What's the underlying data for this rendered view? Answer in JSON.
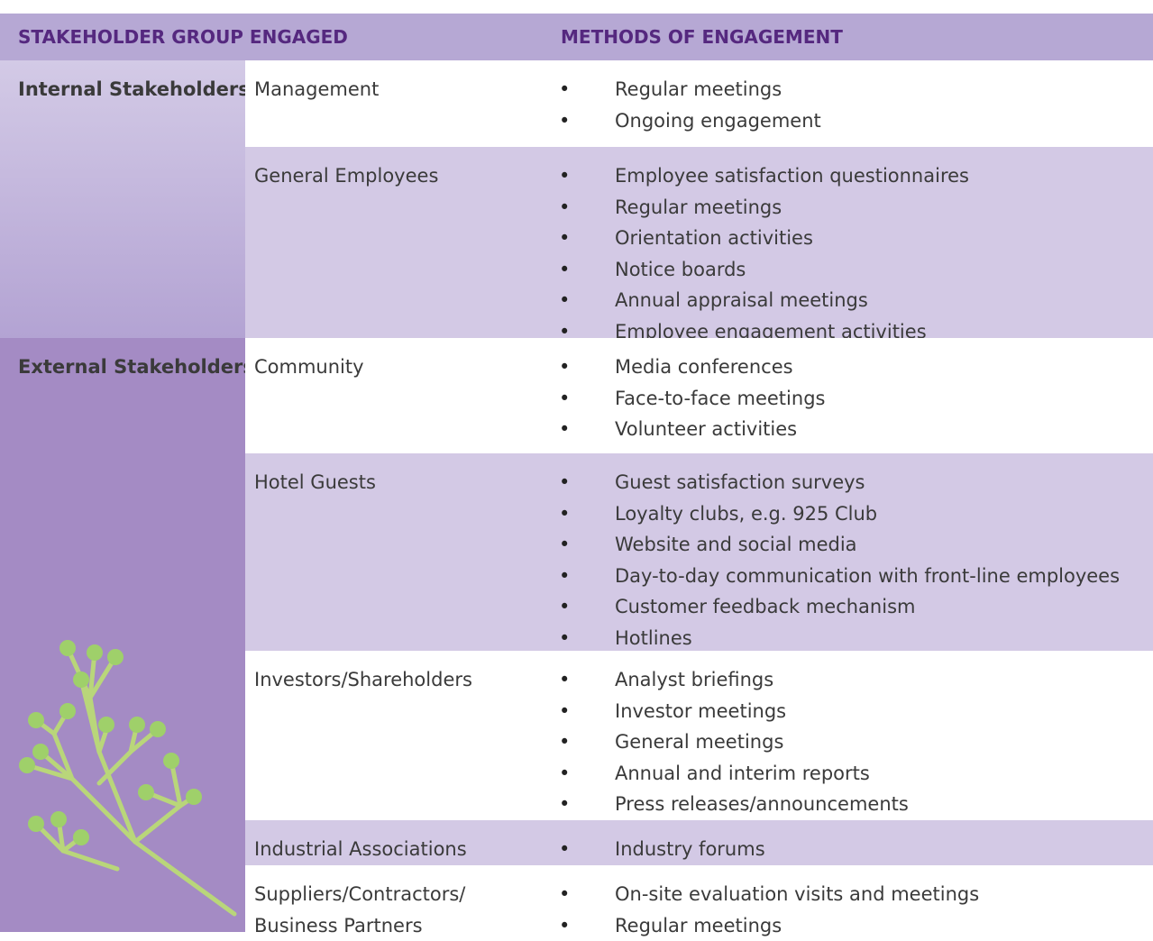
{
  "header": {
    "columns": [
      "STAKEHOLDER GROUP ENGAGED",
      "METHODS OF ENGAGEMENT"
    ]
  },
  "groups": [
    {
      "name": "Internal Stakeholders",
      "rows": [
        {
          "stakeholder": [
            "Management"
          ],
          "methods": [
            "Regular meetings",
            "Ongoing engagement"
          ]
        },
        {
          "stakeholder": [
            "General Employees"
          ],
          "methods": [
            "Employee satisfaction questionnaires",
            "Regular meetings",
            "Orientation activities",
            "Notice boards",
            "Annual appraisal meetings",
            "Employee engagement activities"
          ]
        }
      ]
    },
    {
      "name": "External Stakeholders",
      "rows": [
        {
          "stakeholder": [
            "Community"
          ],
          "methods": [
            "Media conferences",
            "Face-to-face meetings",
            "Volunteer activities"
          ]
        },
        {
          "stakeholder": [
            "Hotel Guests"
          ],
          "methods": [
            "Guest satisfaction surveys",
            "Loyalty clubs, e.g. 925 Club",
            "Website and social media",
            "Day-to-day communication with front-line employees",
            "Customer feedback mechanism",
            "Hotlines"
          ]
        },
        {
          "stakeholder": [
            "Investors/Shareholders"
          ],
          "methods": [
            "Analyst briefings",
            "Investor meetings",
            "General meetings",
            "Annual and interim reports",
            "Press releases/announcements"
          ]
        },
        {
          "stakeholder": [
            "Industrial Associations"
          ],
          "methods": [
            "Industry forums"
          ]
        },
        {
          "stakeholder": [
            "Suppliers/Contractors/",
            "Business Partners"
          ],
          "methods": [
            "On-site evaluation visits and meetings",
            "Regular meetings"
          ]
        }
      ]
    }
  ]
}
